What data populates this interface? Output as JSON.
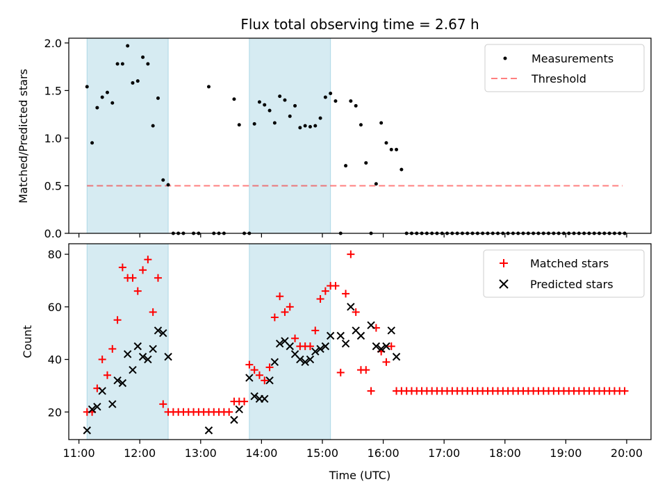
{
  "colors": {
    "shade": "#add8e6",
    "threshold": "#ff0000",
    "matched": "#ff0000",
    "predicted": "#000000",
    "measurements": "#000000"
  },
  "chart_data": [
    {
      "type": "scatter",
      "title": "Flux total observing time = 2.67 h",
      "xlabel": "",
      "ylabel": "Matched/Predicted stars",
      "xlim": [
        "10:50",
        "20:24"
      ],
      "ylim": [
        0,
        2.05
      ],
      "yticks": [
        "0.0",
        "0.5",
        "1.0",
        "1.5",
        "2.0"
      ],
      "x_tick_values": [
        "11:00",
        "12:00",
        "13:00",
        "14:00",
        "15:00",
        "16:00",
        "17:00",
        "18:00",
        "19:00",
        "20:00"
      ],
      "shaded_intervals": [
        [
          "11:08",
          "12:28"
        ],
        [
          "13:48",
          "15:08"
        ]
      ],
      "legend": {
        "position": "upper right",
        "entries": [
          "Measurements",
          "Threshold"
        ]
      },
      "series": [
        {
          "name": "Threshold",
          "kind": "dashed-line",
          "x": [
            "11:08",
            "19:56"
          ],
          "y": [
            0.5,
            0.5
          ]
        },
        {
          "name": "Measurements",
          "kind": "dots",
          "x": [
            "11:08",
            "11:13",
            "11:18",
            "11:23",
            "11:28",
            "11:33",
            "11:38",
            "11:43",
            "11:48",
            "11:53",
            "11:58",
            "12:03",
            "12:08",
            "12:13",
            "12:18",
            "12:23",
            "12:28",
            "12:33",
            "12:38",
            "12:43",
            "12:53",
            "12:58",
            "13:08",
            "13:13",
            "13:18",
            "13:23",
            "13:33",
            "13:38",
            "13:43",
            "13:48",
            "13:53",
            "13:58",
            "14:03",
            "14:08",
            "14:13",
            "14:18",
            "14:23",
            "14:28",
            "14:33",
            "14:38",
            "14:43",
            "14:48",
            "14:53",
            "14:58",
            "15:03",
            "15:08",
            "15:13",
            "15:18",
            "15:23",
            "15:28",
            "15:33",
            "15:38",
            "15:43",
            "15:48",
            "15:53",
            "15:58",
            "16:03",
            "16:08",
            "16:13",
            "16:18",
            "16:23",
            "16:28",
            "16:33",
            "16:38",
            "16:43",
            "16:48",
            "16:53",
            "16:58",
            "17:03",
            "17:08",
            "17:13",
            "17:18",
            "17:23",
            "17:28",
            "17:33",
            "17:38",
            "17:43",
            "17:48",
            "17:53",
            "17:58",
            "18:03",
            "18:08",
            "18:13",
            "18:18",
            "18:23",
            "18:28",
            "18:33",
            "18:38",
            "18:43",
            "18:48",
            "18:53",
            "18:58",
            "19:03",
            "19:08",
            "19:13",
            "19:18",
            "19:23",
            "19:28",
            "19:33",
            "19:38",
            "19:43",
            "19:48",
            "19:53",
            "19:58"
          ],
          "y": [
            1.54,
            0.95,
            1.32,
            1.43,
            1.48,
            1.37,
            1.78,
            1.78,
            1.97,
            1.58,
            1.6,
            1.85,
            1.78,
            1.13,
            1.42,
            0.56,
            0.51,
            0,
            0,
            0,
            0,
            0,
            1.54,
            0,
            0,
            0,
            1.41,
            1.14,
            0,
            0,
            1.15,
            1.38,
            1.35,
            1.29,
            1.16,
            1.44,
            1.4,
            1.23,
            1.34,
            1.11,
            1.13,
            1.12,
            1.13,
            1.21,
            1.43,
            1.47,
            1.39,
            0,
            0.71,
            1.39,
            1.34,
            1.14,
            0.74,
            0,
            0.52,
            1.16,
            0.95,
            0.88,
            0.88,
            0.67,
            0,
            0,
            0,
            0,
            0,
            0,
            0,
            0,
            0,
            0,
            0,
            0,
            0,
            0,
            0,
            0,
            0,
            0,
            0,
            0,
            0,
            0,
            0,
            0,
            0,
            0,
            0,
            0,
            0,
            0,
            0,
            0,
            0,
            0,
            0,
            0,
            0,
            0,
            0,
            0,
            0,
            0,
            0,
            0
          ]
        }
      ]
    },
    {
      "type": "scatter",
      "title": "",
      "xlabel": "Time (UTC)",
      "ylabel": "Count",
      "xlim": [
        "10:50",
        "20:24"
      ],
      "ylim": [
        9.5,
        84
      ],
      "yticks": [
        "20",
        "40",
        "60",
        "80"
      ],
      "xticks": [
        "11:00",
        "12:00",
        "13:00",
        "14:00",
        "15:00",
        "16:00",
        "17:00",
        "18:00",
        "19:00",
        "20:00"
      ],
      "shaded_intervals": [
        [
          "11:08",
          "12:28"
        ],
        [
          "13:48",
          "15:08"
        ]
      ],
      "legend": {
        "position": "upper right",
        "entries": [
          "Matched stars",
          "Predicted stars"
        ]
      },
      "series": [
        {
          "name": "Matched stars",
          "marker": "+",
          "x": [
            "11:08",
            "11:13",
            "11:18",
            "11:23",
            "11:28",
            "11:33",
            "11:38",
            "11:43",
            "11:48",
            "11:53",
            "11:58",
            "12:03",
            "12:08",
            "12:13",
            "12:18",
            "12:23",
            "12:28",
            "12:33",
            "12:38",
            "12:43",
            "12:48",
            "12:53",
            "12:58",
            "13:03",
            "13:08",
            "13:13",
            "13:18",
            "13:23",
            "13:28",
            "13:33",
            "13:38",
            "13:43",
            "13:48",
            "13:53",
            "13:58",
            "14:03",
            "14:08",
            "14:13",
            "14:18",
            "14:23",
            "14:28",
            "14:33",
            "14:38",
            "14:43",
            "14:48",
            "14:53",
            "14:58",
            "15:03",
            "15:08",
            "15:13",
            "15:18",
            "15:23",
            "15:28",
            "15:33",
            "15:38",
            "15:43",
            "15:48",
            "15:53",
            "15:58",
            "16:03",
            "16:08",
            "16:13",
            "16:18",
            "16:23",
            "16:28",
            "16:33",
            "16:38",
            "16:43",
            "16:48",
            "16:53",
            "16:58",
            "17:03",
            "17:08",
            "17:13",
            "17:18",
            "17:23",
            "17:28",
            "17:33",
            "17:38",
            "17:43",
            "17:48",
            "17:53",
            "17:58",
            "18:03",
            "18:08",
            "18:13",
            "18:18",
            "18:23",
            "18:28",
            "18:33",
            "18:38",
            "18:43",
            "18:48",
            "18:53",
            "18:58",
            "19:03",
            "19:08",
            "19:13",
            "19:18",
            "19:23",
            "19:28",
            "19:33",
            "19:38",
            "19:43",
            "19:48",
            "19:53",
            "19:58"
          ],
          "y": [
            20,
            20,
            29,
            40,
            34,
            44,
            55,
            75,
            71,
            71,
            66,
            74,
            78,
            58,
            71,
            23,
            20,
            20,
            20,
            20,
            20,
            20,
            20,
            20,
            20,
            20,
            20,
            20,
            20,
            24,
            24,
            24,
            38,
            36,
            34,
            32,
            37,
            56,
            64,
            58,
            60,
            48,
            45,
            45,
            45,
            51,
            63,
            66,
            68,
            68,
            35,
            65,
            80,
            58,
            36,
            36,
            28,
            52,
            43,
            39,
            45,
            28,
            28,
            28,
            28,
            28,
            28,
            28,
            28,
            28,
            28,
            28,
            28,
            28,
            28,
            28,
            28,
            28,
            28,
            28,
            28,
            28,
            28,
            28,
            28,
            28,
            28,
            28,
            28,
            28,
            28,
            28,
            28,
            28,
            28,
            28,
            28,
            28,
            28,
            28,
            28,
            28,
            28,
            28,
            28,
            28,
            28
          ]
        },
        {
          "name": "Predicted stars",
          "marker": "x",
          "x": [
            "11:08",
            "11:13",
            "11:18",
            "11:23",
            "11:33",
            "11:38",
            "11:43",
            "11:48",
            "11:53",
            "11:58",
            "12:03",
            "12:08",
            "12:13",
            "12:18",
            "12:23",
            "12:28",
            "13:08",
            "13:33",
            "13:38",
            "13:48",
            "13:53",
            "13:58",
            "14:03",
            "14:08",
            "14:13",
            "14:18",
            "14:23",
            "14:28",
            "14:33",
            "14:38",
            "14:43",
            "14:48",
            "14:53",
            "14:58",
            "15:03",
            "15:08",
            "15:18",
            "15:23",
            "15:28",
            "15:33",
            "15:38",
            "15:48",
            "15:53",
            "15:58",
            "16:03",
            "16:08",
            "16:13"
          ],
          "y": [
            13,
            21,
            22,
            28,
            23,
            32,
            31,
            42,
            36,
            45,
            41,
            40,
            44,
            51,
            50,
            41,
            13,
            17,
            21,
            33,
            26,
            25,
            25,
            32,
            39,
            46,
            47,
            45,
            42,
            40,
            39,
            40,
            43,
            44,
            45,
            49,
            49,
            46,
            60,
            51,
            49,
            53,
            45,
            44,
            45,
            51,
            41
          ]
        }
      ]
    }
  ]
}
